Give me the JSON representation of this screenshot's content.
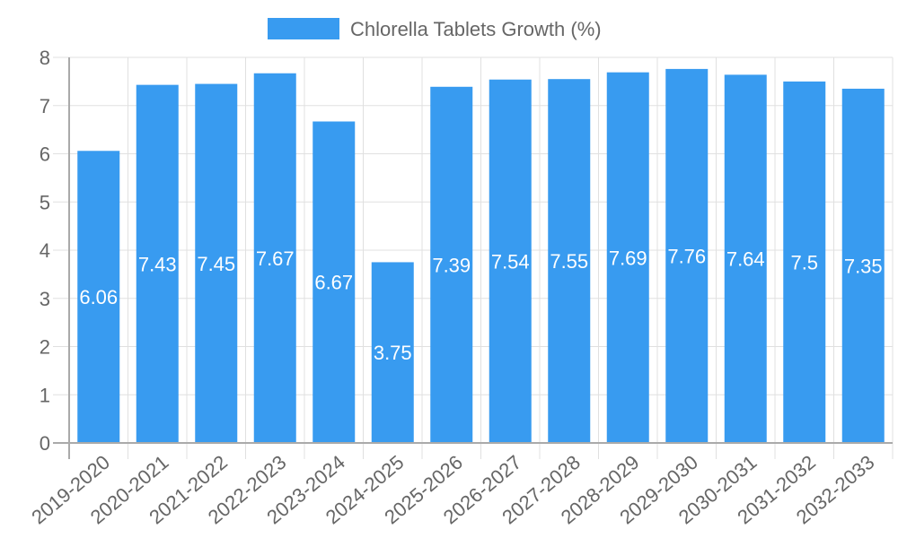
{
  "chart_data": {
    "type": "bar",
    "title": "",
    "xlabel": "",
    "ylabel": "",
    "ylim": [
      0,
      8
    ],
    "yticks": [
      0,
      1,
      2,
      3,
      4,
      5,
      6,
      7,
      8
    ],
    "grid": true,
    "legend_position": "top",
    "categories": [
      "2019-2020",
      "2020-2021",
      "2021-2022",
      "2022-2023",
      "2023-2024",
      "2024-2025",
      "2025-2026",
      "2026-2027",
      "2027-2028",
      "2028-2029",
      "2029-2030",
      "2030-2031",
      "2031-2032",
      "2032-2033"
    ],
    "series": [
      {
        "name": "Chlorella Tablets Growth (%)",
        "color": "#389bf0",
        "values": [
          6.06,
          7.43,
          7.45,
          7.67,
          6.67,
          3.75,
          7.39,
          7.54,
          7.55,
          7.69,
          7.76,
          7.64,
          7.5,
          7.35
        ],
        "data_labels": [
          "6.06",
          "7.43",
          "7.45",
          "7.67",
          "6.67",
          "3.75",
          "7.39",
          "7.54",
          "7.55",
          "7.69",
          "7.76",
          "7.64",
          "7.5",
          "7.35"
        ]
      }
    ]
  },
  "legend": {
    "label": "Chlorella Tablets Growth (%)",
    "swatch_color": "#389bf0"
  },
  "colors": {
    "bar": "#389bf0",
    "grid": "#e0e0e0",
    "axis": "#aaaaaa",
    "text": "#666666",
    "data_label": "#ffffff"
  }
}
